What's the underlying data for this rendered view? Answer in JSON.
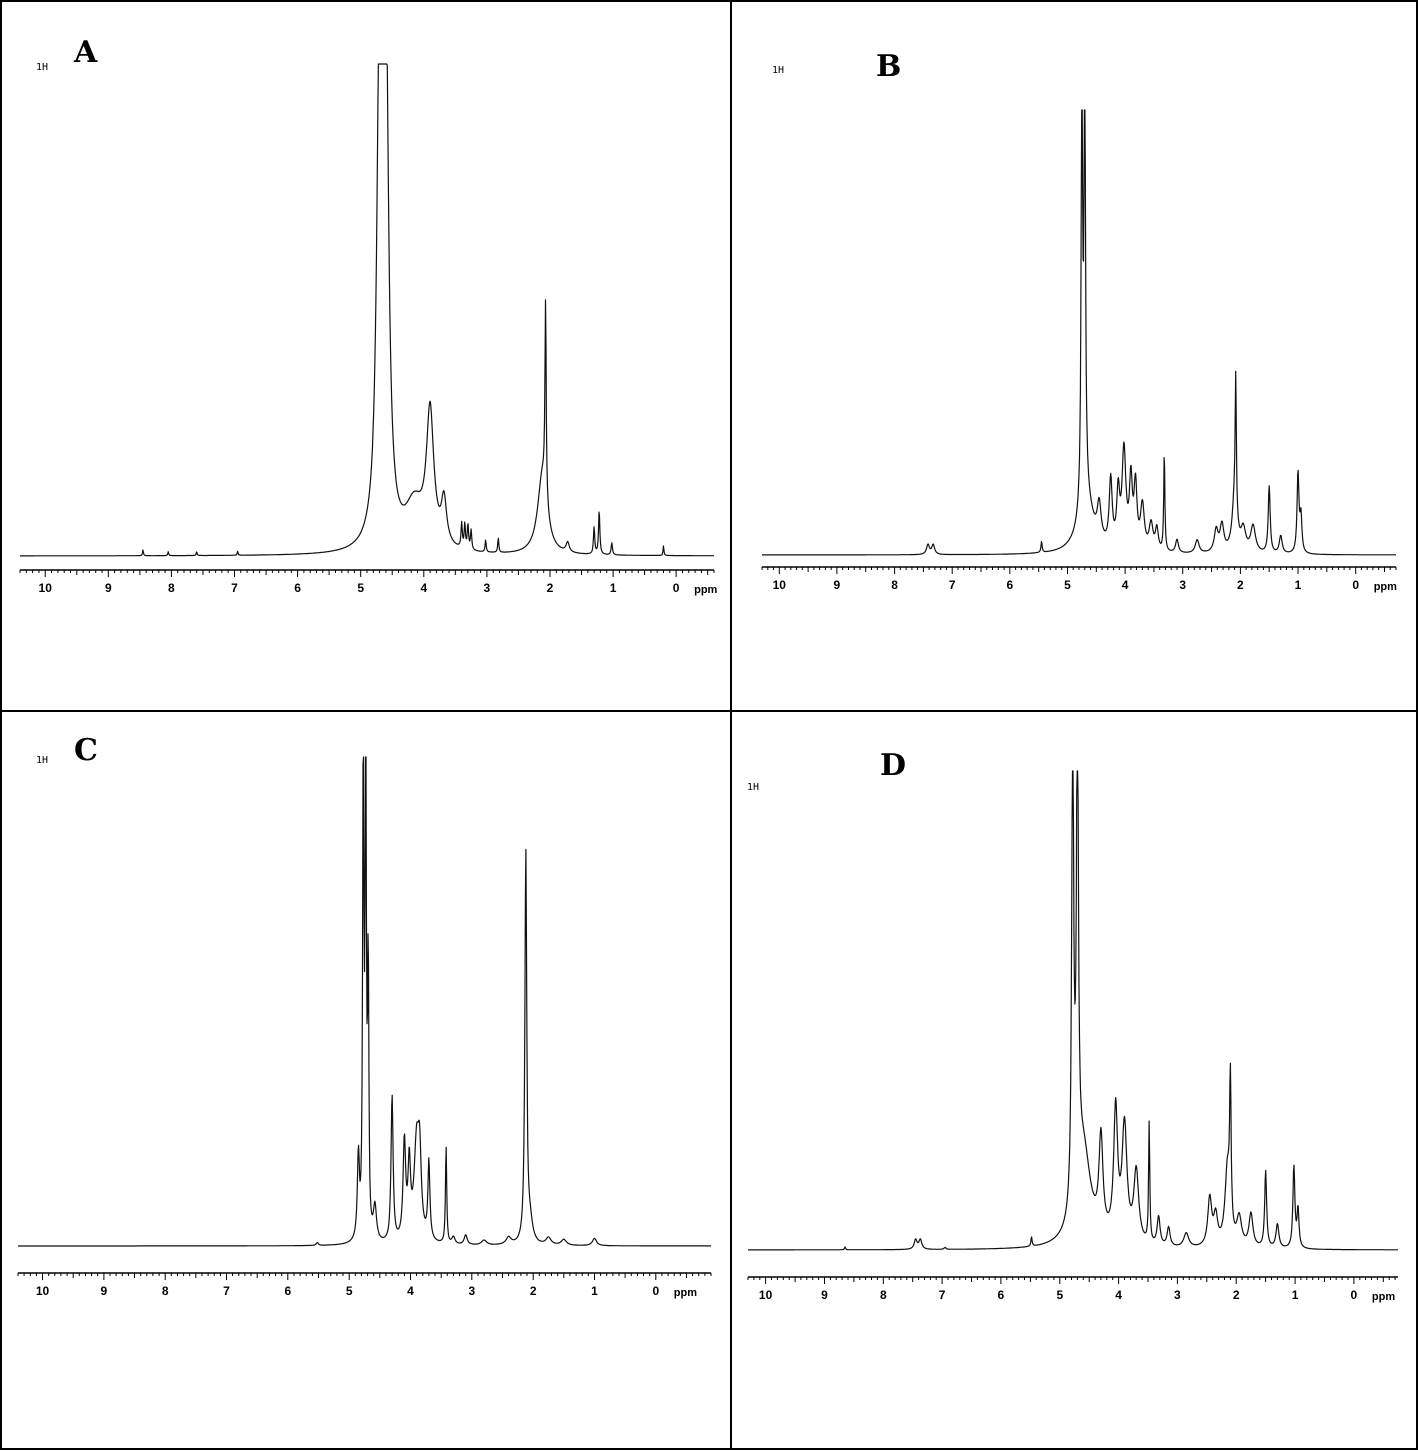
{
  "chart_data": [
    {
      "type": "line",
      "panel": "A",
      "nucleus": "1H",
      "x_unit": "ppm",
      "x_ticks": [
        "10",
        "9",
        "8",
        "7",
        "6",
        "5",
        "4",
        "3",
        "2",
        "1",
        "0"
      ],
      "xlim": [
        10.4,
        -0.6
      ],
      "peaks": [
        {
          "ppm": 8.45,
          "h": 0.012,
          "w": 0.008
        },
        {
          "ppm": 8.05,
          "h": 0.008,
          "w": 0.008
        },
        {
          "ppm": 7.6,
          "h": 0.008,
          "w": 0.008
        },
        {
          "ppm": 6.95,
          "h": 0.008,
          "w": 0.008
        },
        {
          "ppm": 4.7,
          "h": 1.0,
          "w": 0.05
        },
        {
          "ppm": 4.6,
          "h": 1.0,
          "w": 0.05
        },
        {
          "ppm": 4.15,
          "h": 0.09,
          "w": 0.18
        },
        {
          "ppm": 3.9,
          "h": 0.27,
          "w": 0.07
        },
        {
          "ppm": 3.68,
          "h": 0.09,
          "w": 0.05
        },
        {
          "ppm": 3.4,
          "h": 0.05,
          "w": 0.012
        },
        {
          "ppm": 3.35,
          "h": 0.05,
          "w": 0.012
        },
        {
          "ppm": 3.3,
          "h": 0.05,
          "w": 0.012
        },
        {
          "ppm": 3.25,
          "h": 0.04,
          "w": 0.012
        },
        {
          "ppm": 3.02,
          "h": 0.025,
          "w": 0.01
        },
        {
          "ppm": 2.82,
          "h": 0.03,
          "w": 0.01
        },
        {
          "ppm": 2.12,
          "h": 0.16,
          "w": 0.09
        },
        {
          "ppm": 2.07,
          "h": 0.4,
          "w": 0.012
        },
        {
          "ppm": 1.72,
          "h": 0.02,
          "w": 0.03
        },
        {
          "ppm": 1.3,
          "h": 0.055,
          "w": 0.012
        },
        {
          "ppm": 1.22,
          "h": 0.09,
          "w": 0.012
        },
        {
          "ppm": 1.02,
          "h": 0.025,
          "w": 0.012
        },
        {
          "ppm": 0.2,
          "h": 0.02,
          "w": 0.008
        }
      ]
    },
    {
      "type": "line",
      "panel": "B",
      "nucleus": "1H",
      "x_unit": "ppm",
      "x_ticks": [
        "10",
        "9",
        "8",
        "7",
        "6",
        "5",
        "4",
        "3",
        "2",
        "1",
        "0"
      ],
      "xlim": [
        10.3,
        -0.7
      ],
      "peaks": [
        {
          "ppm": 7.42,
          "h": 0.022,
          "w": 0.03
        },
        {
          "ppm": 7.33,
          "h": 0.022,
          "w": 0.03
        },
        {
          "ppm": 5.45,
          "h": 0.025,
          "w": 0.012
        },
        {
          "ppm": 4.75,
          "h": 1.0,
          "w": 0.015
        },
        {
          "ppm": 4.7,
          "h": 1.0,
          "w": 0.015
        },
        {
          "ppm": 4.68,
          "h": 0.12,
          "w": 0.15
        },
        {
          "ppm": 4.45,
          "h": 0.08,
          "w": 0.04
        },
        {
          "ppm": 4.25,
          "h": 0.15,
          "w": 0.03
        },
        {
          "ppm": 4.12,
          "h": 0.12,
          "w": 0.03
        },
        {
          "ppm": 4.02,
          "h": 0.22,
          "w": 0.04
        },
        {
          "ppm": 3.9,
          "h": 0.15,
          "w": 0.03
        },
        {
          "ppm": 3.82,
          "h": 0.14,
          "w": 0.03
        },
        {
          "ppm": 3.7,
          "h": 0.1,
          "w": 0.04
        },
        {
          "ppm": 3.55,
          "h": 0.06,
          "w": 0.04
        },
        {
          "ppm": 3.45,
          "h": 0.05,
          "w": 0.03
        },
        {
          "ppm": 3.32,
          "h": 0.22,
          "w": 0.012
        },
        {
          "ppm": 3.1,
          "h": 0.03,
          "w": 0.03
        },
        {
          "ppm": 2.75,
          "h": 0.03,
          "w": 0.04
        },
        {
          "ppm": 2.42,
          "h": 0.05,
          "w": 0.04
        },
        {
          "ppm": 2.32,
          "h": 0.06,
          "w": 0.04
        },
        {
          "ppm": 2.1,
          "h": 0.12,
          "w": 0.05
        },
        {
          "ppm": 2.08,
          "h": 0.3,
          "w": 0.012
        },
        {
          "ppm": 1.95,
          "h": 0.05,
          "w": 0.05
        },
        {
          "ppm": 1.78,
          "h": 0.06,
          "w": 0.05
        },
        {
          "ppm": 1.5,
          "h": 0.15,
          "w": 0.02
        },
        {
          "ppm": 1.3,
          "h": 0.04,
          "w": 0.03
        },
        {
          "ppm": 1.0,
          "h": 0.18,
          "w": 0.02
        },
        {
          "ppm": 0.95,
          "h": 0.08,
          "w": 0.02
        }
      ]
    },
    {
      "type": "line",
      "panel": "C",
      "nucleus": "1H",
      "x_unit": "ppm",
      "x_ticks": [
        "10",
        "9",
        "8",
        "7",
        "6",
        "5",
        "4",
        "3",
        "2",
        "1",
        "0"
      ],
      "xlim": [
        10.4,
        -0.9
      ],
      "peaks": [
        {
          "ppm": 5.52,
          "h": 0.006,
          "w": 0.02
        },
        {
          "ppm": 4.85,
          "h": 0.17,
          "w": 0.02
        },
        {
          "ppm": 4.77,
          "h": 1.0,
          "w": 0.012
        },
        {
          "ppm": 4.73,
          "h": 1.0,
          "w": 0.012
        },
        {
          "ppm": 4.69,
          "h": 0.55,
          "w": 0.012
        },
        {
          "ppm": 4.58,
          "h": 0.07,
          "w": 0.03
        },
        {
          "ppm": 4.3,
          "h": 0.3,
          "w": 0.02
        },
        {
          "ppm": 4.1,
          "h": 0.2,
          "w": 0.025
        },
        {
          "ppm": 4.02,
          "h": 0.15,
          "w": 0.025
        },
        {
          "ppm": 3.9,
          "h": 0.2,
          "w": 0.05
        },
        {
          "ppm": 3.85,
          "h": 0.14,
          "w": 0.03
        },
        {
          "ppm": 3.7,
          "h": 0.16,
          "w": 0.02
        },
        {
          "ppm": 3.42,
          "h": 0.2,
          "w": 0.012
        },
        {
          "ppm": 3.3,
          "h": 0.015,
          "w": 0.03
        },
        {
          "ppm": 3.1,
          "h": 0.02,
          "w": 0.03
        },
        {
          "ppm": 2.8,
          "h": 0.01,
          "w": 0.05
        },
        {
          "ppm": 2.4,
          "h": 0.015,
          "w": 0.05
        },
        {
          "ppm": 2.12,
          "h": 0.8,
          "w": 0.018
        },
        {
          "ppm": 2.05,
          "h": 0.04,
          "w": 0.05
        },
        {
          "ppm": 1.75,
          "h": 0.015,
          "w": 0.05
        },
        {
          "ppm": 1.5,
          "h": 0.012,
          "w": 0.05
        },
        {
          "ppm": 1.0,
          "h": 0.015,
          "w": 0.04
        }
      ]
    },
    {
      "type": "line",
      "panel": "D",
      "nucleus": "1H",
      "x_unit": "ppm",
      "x_ticks": [
        "10",
        "9",
        "8",
        "7",
        "6",
        "5",
        "4",
        "3",
        "2",
        "1",
        "0"
      ],
      "xlim": [
        10.3,
        -0.75
      ],
      "peaks": [
        {
          "ppm": 8.65,
          "h": 0.006,
          "w": 0.01
        },
        {
          "ppm": 7.45,
          "h": 0.02,
          "w": 0.03
        },
        {
          "ppm": 7.37,
          "h": 0.02,
          "w": 0.03
        },
        {
          "ppm": 6.95,
          "h": 0.004,
          "w": 0.02
        },
        {
          "ppm": 5.48,
          "h": 0.02,
          "w": 0.012
        },
        {
          "ppm": 4.78,
          "h": 1.0,
          "w": 0.02
        },
        {
          "ppm": 4.7,
          "h": 1.0,
          "w": 0.02
        },
        {
          "ppm": 4.6,
          "h": 0.2,
          "w": 0.15
        },
        {
          "ppm": 4.3,
          "h": 0.2,
          "w": 0.04
        },
        {
          "ppm": 4.05,
          "h": 0.27,
          "w": 0.04
        },
        {
          "ppm": 3.9,
          "h": 0.24,
          "w": 0.05
        },
        {
          "ppm": 3.7,
          "h": 0.15,
          "w": 0.05
        },
        {
          "ppm": 3.48,
          "h": 0.25,
          "w": 0.012
        },
        {
          "ppm": 3.32,
          "h": 0.06,
          "w": 0.03
        },
        {
          "ppm": 3.15,
          "h": 0.04,
          "w": 0.03
        },
        {
          "ppm": 2.85,
          "h": 0.03,
          "w": 0.05
        },
        {
          "ppm": 2.45,
          "h": 0.1,
          "w": 0.04
        },
        {
          "ppm": 2.35,
          "h": 0.06,
          "w": 0.04
        },
        {
          "ppm": 2.15,
          "h": 0.16,
          "w": 0.05
        },
        {
          "ppm": 2.1,
          "h": 0.3,
          "w": 0.015
        },
        {
          "ppm": 1.95,
          "h": 0.06,
          "w": 0.05
        },
        {
          "ppm": 1.75,
          "h": 0.07,
          "w": 0.04
        },
        {
          "ppm": 1.5,
          "h": 0.16,
          "w": 0.02
        },
        {
          "ppm": 1.3,
          "h": 0.05,
          "w": 0.03
        },
        {
          "ppm": 1.02,
          "h": 0.17,
          "w": 0.02
        },
        {
          "ppm": 0.95,
          "h": 0.08,
          "w": 0.02
        }
      ]
    }
  ]
}
